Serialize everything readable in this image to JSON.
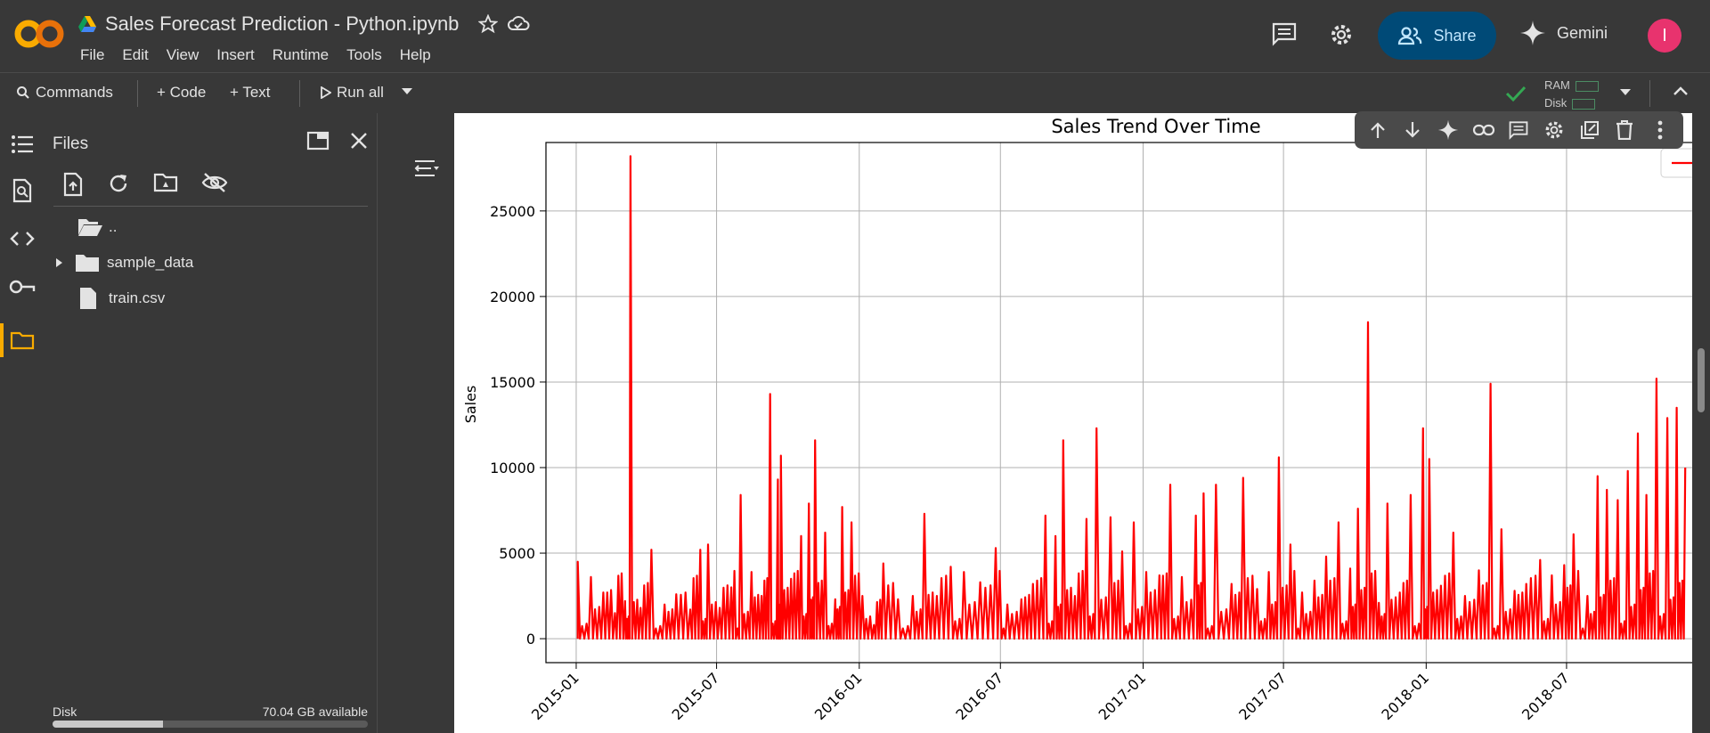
{
  "app": {
    "doc_title": "Sales Forecast Prediction - Python.ipynb",
    "menu": [
      "File",
      "Edit",
      "View",
      "Insert",
      "Runtime",
      "Tools",
      "Help"
    ],
    "share_label": "Share",
    "gemini_label": "Gemini",
    "avatar_letter": "I"
  },
  "toolbar": {
    "commands": "Commands",
    "add_code": "+ Code",
    "add_text": "+ Text",
    "run_all": "Run all",
    "ram_label": "RAM",
    "disk_label": "Disk"
  },
  "files": {
    "title": "Files",
    "tree": [
      {
        "name": "..",
        "type": "parent"
      },
      {
        "name": "sample_data",
        "type": "folder"
      },
      {
        "name": "train.csv",
        "type": "file"
      }
    ],
    "disk_label": "Disk",
    "disk_available": "70.04 GB available",
    "disk_used_fraction": 0.35
  },
  "colors": {
    "accent": "#f9ab00",
    "share_bg": "#004a77",
    "avatar": "#e8336e",
    "line": "#ff0000"
  },
  "chart_data": {
    "type": "line",
    "title": "Sales Trend Over Time",
    "ylabel": "Sales",
    "xlabel": "",
    "x_ticks": [
      "2015-01",
      "2015-07",
      "2016-01",
      "2016-07",
      "2017-01",
      "2017-07",
      "2018-01",
      "2018-07"
    ],
    "y_ticks": [
      0,
      5000,
      10000,
      15000,
      20000,
      25000
    ],
    "ylim": [
      -1400,
      29000
    ],
    "xlim": [
      "2014-11-23",
      "2018-12-10"
    ],
    "grid": true,
    "series": [
      {
        "color": "#ff0000",
        "points": [
          [
            "2015-01-03",
            4500
          ],
          [
            "2015-01-20",
            3600
          ],
          [
            "2015-02-05",
            2700
          ],
          [
            "2015-02-20",
            1500
          ],
          [
            "2015-03-05",
            2200
          ],
          [
            "2015-03-12",
            28200
          ],
          [
            "2015-03-25",
            1800
          ],
          [
            "2015-04-08",
            5200
          ],
          [
            "2015-04-25",
            2000
          ],
          [
            "2015-05-10",
            2600
          ],
          [
            "2015-05-28",
            1700
          ],
          [
            "2015-06-10",
            5200
          ],
          [
            "2015-06-20",
            5500
          ],
          [
            "2015-07-05",
            1800
          ],
          [
            "2015-07-20",
            3000
          ],
          [
            "2015-08-01",
            8400
          ],
          [
            "2015-08-15",
            3900
          ],
          [
            "2015-08-28",
            2500
          ],
          [
            "2015-09-08",
            14300
          ],
          [
            "2015-09-18",
            9300
          ],
          [
            "2015-09-22",
            10700
          ],
          [
            "2015-10-05",
            3500
          ],
          [
            "2015-10-18",
            6000
          ],
          [
            "2015-10-28",
            7900
          ],
          [
            "2015-11-05",
            11600
          ],
          [
            "2015-11-18",
            6200
          ],
          [
            "2015-12-01",
            2300
          ],
          [
            "2015-12-10",
            7700
          ],
          [
            "2015-12-22",
            6800
          ],
          [
            "2016-01-05",
            2500
          ],
          [
            "2016-01-20",
            800
          ],
          [
            "2016-02-01",
            4400
          ],
          [
            "2016-02-20",
            2300
          ],
          [
            "2016-03-10",
            2500
          ],
          [
            "2016-03-25",
            7300
          ],
          [
            "2016-04-10",
            2500
          ],
          [
            "2016-04-28",
            4200
          ],
          [
            "2016-05-15",
            3900
          ],
          [
            "2016-06-05",
            3300
          ],
          [
            "2016-06-25",
            5300
          ],
          [
            "2016-07-10",
            2000
          ],
          [
            "2016-07-28",
            2300
          ],
          [
            "2016-08-12",
            3200
          ],
          [
            "2016-08-28",
            7200
          ],
          [
            "2016-09-10",
            6000
          ],
          [
            "2016-09-20",
            11600
          ],
          [
            "2016-10-05",
            2500
          ],
          [
            "2016-10-20",
            7000
          ],
          [
            "2016-11-02",
            12300
          ],
          [
            "2016-11-20",
            7100
          ],
          [
            "2016-12-05",
            5100
          ],
          [
            "2016-12-20",
            6800
          ],
          [
            "2017-01-05",
            3900
          ],
          [
            "2017-01-22",
            3700
          ],
          [
            "2017-02-05",
            9000
          ],
          [
            "2017-02-20",
            3600
          ],
          [
            "2017-03-10",
            7200
          ],
          [
            "2017-03-20",
            8500
          ],
          [
            "2017-04-05",
            9000
          ],
          [
            "2017-04-25",
            3200
          ],
          [
            "2017-05-10",
            9400
          ],
          [
            "2017-05-28",
            2900
          ],
          [
            "2017-06-12",
            3900
          ],
          [
            "2017-06-25",
            10600
          ],
          [
            "2017-07-10",
            5500
          ],
          [
            "2017-07-25",
            2700
          ],
          [
            "2017-08-10",
            3400
          ],
          [
            "2017-08-25",
            4800
          ],
          [
            "2017-09-10",
            6800
          ],
          [
            "2017-09-25",
            4100
          ],
          [
            "2017-10-05",
            7600
          ],
          [
            "2017-10-18",
            18500
          ],
          [
            "2017-11-01",
            2100
          ],
          [
            "2017-11-12",
            7900
          ],
          [
            "2017-11-28",
            2700
          ],
          [
            "2017-12-12",
            8400
          ],
          [
            "2017-12-28",
            12300
          ],
          [
            "2018-01-05",
            10500
          ],
          [
            "2018-01-20",
            3100
          ],
          [
            "2018-02-05",
            6200
          ],
          [
            "2018-02-20",
            2500
          ],
          [
            "2018-03-10",
            4000
          ],
          [
            "2018-03-25",
            14900
          ],
          [
            "2018-04-08",
            6400
          ],
          [
            "2018-04-25",
            2800
          ],
          [
            "2018-05-10",
            3200
          ],
          [
            "2018-05-28",
            4600
          ],
          [
            "2018-06-12",
            3700
          ],
          [
            "2018-06-28",
            4300
          ],
          [
            "2018-07-10",
            6100
          ],
          [
            "2018-07-28",
            2500
          ],
          [
            "2018-08-10",
            9500
          ],
          [
            "2018-08-22",
            8700
          ],
          [
            "2018-09-05",
            8100
          ],
          [
            "2018-09-18",
            9800
          ],
          [
            "2018-10-01",
            12000
          ],
          [
            "2018-10-12",
            8400
          ],
          [
            "2018-10-25",
            15200
          ],
          [
            "2018-11-08",
            12900
          ],
          [
            "2018-11-20",
            13500
          ],
          [
            "2018-12-01",
            10000
          ]
        ]
      }
    ]
  }
}
